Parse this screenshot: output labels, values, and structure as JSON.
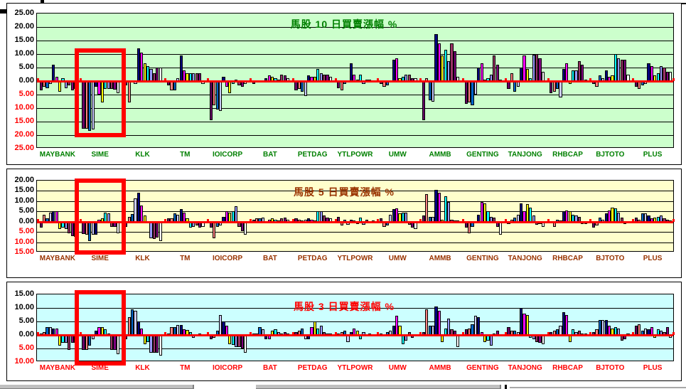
{
  "page": {
    "background": "#FFFFFF"
  },
  "chart_data": [
    {
      "id": "ten_day",
      "type": "bar",
      "title": "馬股 10 日買賣漲幅 %",
      "title_color": "#008000",
      "plot_bg": "#CCFFCC",
      "category_label_color": "#008000",
      "ylim": [
        -25,
        25
      ],
      "y_tick_step": 5,
      "y_ticks": [
        25,
        20,
        15,
        10,
        5,
        0,
        -5,
        -10,
        -15,
        -20,
        -25
      ],
      "y_tick_pos_color": "#000000",
      "y_tick_neg_color": "#FF0000",
      "zero_line_color": "#FF0000",
      "gridline_color": "#000000",
      "legend": "none",
      "bars_per_group": 12,
      "series_colors": [
        "#660066",
        "#FF8080",
        "#0066CC",
        "#CCCCFF",
        "#000080",
        "#FF00FF",
        "#FFFF00",
        "#00FFFF",
        "#9999FF",
        "#993366",
        "#800080",
        "#FFFFFF"
      ],
      "categories": [
        "MAYBANK",
        "SIME",
        "KLK",
        "TM",
        "IOICORP",
        "BAT",
        "PETDAG",
        "YTLPOWR",
        "UMW",
        "AMMB",
        "GENTING",
        "TANJONG",
        "RHBCAP",
        "BJTOTO",
        "PLUS"
      ],
      "groups": [
        [
          -3.5,
          -2,
          -2.5,
          -1,
          6,
          1.5,
          -4,
          1,
          -2.5,
          -1.5,
          -3.5,
          -3
        ],
        [
          -17.5,
          -17.5,
          -18.5,
          -18,
          -2,
          -5,
          -7.8,
          -3,
          -3,
          -3,
          -3.2,
          -4.5
        ],
        [
          -1.5,
          -8,
          -0.5,
          -1,
          12,
          10.5,
          6.5,
          5.5,
          4.5,
          3,
          5,
          5
        ],
        [
          -1.5,
          -3.5,
          -3.5,
          1,
          9.5,
          4,
          3,
          3,
          3,
          3,
          3,
          -1
        ],
        [
          -14.5,
          -9,
          -10.5,
          -11,
          1.5,
          -2,
          -4.5,
          -1,
          0.5,
          -1.5,
          -2,
          -1
        ],
        [
          -1,
          -0.5,
          -0.5,
          -0.5,
          1,
          2,
          1.5,
          1,
          0.5,
          2.5,
          2,
          1
        ],
        [
          -3.5,
          -3,
          -4,
          -5.5,
          2,
          1.5,
          1.5,
          4.5,
          3,
          2.5,
          2.5,
          1.5
        ],
        [
          -2.5,
          -3.5,
          -1,
          -0.5,
          6.5,
          2.5,
          0.5,
          2.5,
          -1,
          0.5,
          0.5,
          -0.5
        ],
        [
          -1,
          -2,
          -1.5,
          -0.5,
          8,
          8.5,
          1,
          1.5,
          2.5,
          2.5,
          1,
          1
        ],
        [
          -14.5,
          1,
          -7,
          -7.5,
          17.5,
          14,
          9.5,
          11.5,
          7.5,
          14,
          11,
          1.5
        ],
        [
          -8.5,
          -8,
          -9,
          -5,
          5,
          6.5,
          0.5,
          1,
          2.5,
          9.5,
          6,
          0.5
        ],
        [
          -3,
          3,
          -4,
          -2,
          5,
          9.5,
          4.5,
          1,
          9.8,
          10,
          8.5,
          3.5
        ],
        [
          -4.5,
          -4,
          -3,
          -6,
          4.5,
          6.5,
          -1,
          4,
          4,
          7.5,
          6,
          0.5
        ],
        [
          -1,
          -2,
          2,
          1,
          4,
          1.5,
          2,
          10,
          8.5,
          8,
          8,
          2.5
        ],
        [
          -2,
          -3,
          -1.5,
          -1,
          6.5,
          5.5,
          2,
          3,
          5.5,
          5,
          3.5,
          3.5
        ]
      ],
      "highlight": {
        "category": "SIME",
        "color": "#FF0000"
      }
    },
    {
      "id": "five_day",
      "type": "bar",
      "title": "馬股 5 日買賣漲幅 %",
      "title_color": "#993300",
      "plot_bg": "#FFFFCC",
      "category_label_color": "#993300",
      "ylim": [
        -15,
        20
      ],
      "y_tick_step": 5,
      "y_ticks": [
        20,
        15,
        10,
        5,
        0,
        -5,
        -10,
        -15
      ],
      "y_tick_pos_color": "#000000",
      "y_tick_neg_color": "#FF0000",
      "zero_line_color": "#FF0000",
      "gridline_color": "#000000",
      "legend": "none",
      "bars_per_group": 12,
      "series_colors": [
        "#660066",
        "#FF8080",
        "#0066CC",
        "#CCCCFF",
        "#000080",
        "#FF00FF",
        "#FFFF00",
        "#00FFFF",
        "#9999FF",
        "#993366",
        "#800080",
        "#FFFFFF"
      ],
      "categories": [
        "MAYBANK",
        "SIME",
        "KLK",
        "TM",
        "IOICORP",
        "BAT",
        "PETDAG",
        "YTLPOWR",
        "UMW",
        "AMMB",
        "GENTING",
        "TANJONG",
        "RHBCAP",
        "BJTOTO",
        "PLUS"
      ],
      "groups": [
        [
          -3,
          3.5,
          1.5,
          4.5,
          5,
          5,
          -3.5,
          -3,
          -3.5,
          -5.5,
          -7,
          -7.5
        ],
        [
          -6,
          -6.5,
          -9.5,
          -6.5,
          -6.5,
          1,
          1.5,
          4.5,
          4,
          -2.5,
          -2.5,
          -5.5
        ],
        [
          -2.5,
          2.5,
          3.8,
          11.5,
          14,
          7.8,
          3,
          -0.5,
          -8,
          -8.5,
          -7.8,
          -9.5
        ],
        [
          1.5,
          1.8,
          4,
          3.5,
          6,
          4.5,
          1.8,
          -3,
          -2.5,
          -2,
          -3,
          -2.5
        ],
        [
          -3,
          -8,
          -2.5,
          -2,
          2.5,
          5,
          4.5,
          5,
          7.5,
          -2.5,
          -4.5,
          -6.5
        ],
        [
          1,
          1.5,
          1.5,
          2,
          -0.5,
          1,
          1.5,
          1,
          0.5,
          1.5,
          2,
          1
        ],
        [
          1.5,
          1,
          0.5,
          1,
          1.5,
          1,
          0.5,
          5,
          5,
          3,
          2,
          1.5
        ],
        [
          2.5,
          -2,
          1,
          -1.5,
          1,
          0.5,
          -1,
          2,
          -1.5,
          1,
          -0.5,
          0.5
        ],
        [
          1.5,
          -2.5,
          -2,
          3.5,
          6,
          6.5,
          4,
          4.5,
          4.5,
          -1.5,
          -3,
          -3.5
        ],
        [
          3,
          13.5,
          2.5,
          2.5,
          15.5,
          14,
          1,
          12.5,
          9.5,
          1,
          0.5,
          0.5
        ],
        [
          -3,
          -5.5,
          -2.5,
          -0.5,
          3.5,
          9.5,
          9,
          5,
          2.5,
          2,
          -2.5,
          -6.5
        ],
        [
          -1,
          1,
          2,
          3.5,
          9,
          5,
          8.5,
          7,
          3,
          -1.5,
          -1,
          -2.5
        ],
        [
          -0.5,
          -2.5,
          1,
          0.5,
          5,
          5.5,
          5,
          3.5,
          3,
          2.5,
          -1,
          -1
        ],
        [
          -3,
          -2,
          2,
          1,
          4,
          5.5,
          7,
          6.5,
          4.5,
          2,
          -1,
          -0.5
        ],
        [
          2,
          1,
          4,
          4,
          3,
          1.5,
          2,
          2.5,
          3,
          1.5,
          1,
          0.5
        ]
      ],
      "highlight": {
        "category": "SIME",
        "color": "#FF0000"
      }
    },
    {
      "id": "three_day",
      "type": "bar",
      "title": "馬股 3 日買賣漲幅 %",
      "title_color": "#FF0000",
      "plot_bg": "#CCFFFF",
      "category_label_color": "#FF0000",
      "ylim": [
        -10,
        15
      ],
      "y_tick_step": 5,
      "y_ticks": [
        15,
        10,
        5,
        0,
        -5,
        -10
      ],
      "y_tick_pos_color": "#000000",
      "y_tick_neg_color": "#FF0000",
      "zero_line_color": "#FF0000",
      "gridline_color": "#000000",
      "legend": "none",
      "bars_per_group": 12,
      "series_colors": [
        "#660066",
        "#FF8080",
        "#0066CC",
        "#CCCCFF",
        "#000080",
        "#FF00FF",
        "#FFFF00",
        "#00FFFF",
        "#9999FF",
        "#993366",
        "#800080",
        "#FFFFFF"
      ],
      "categories": [
        "MAYBANK",
        "SIME",
        "KLK",
        "TM",
        "IOICORP",
        "BAT",
        "PETDAG",
        "YTLPOWR",
        "UMW",
        "AMMB",
        "GENTING",
        "TANJONG",
        "RHBCAP",
        "BJTOTO",
        "PLUS"
      ],
      "groups": [
        [
          0.5,
          1,
          2.8,
          2.8,
          2.5,
          2.3,
          -4,
          -3,
          -3,
          -5.5,
          -3,
          -3
        ],
        [
          -5.5,
          -5.5,
          -4,
          -1.5,
          1.5,
          2.8,
          2.8,
          2,
          0.5,
          -5.5,
          -5.5,
          -7
        ],
        [
          -1.5,
          6.5,
          9.5,
          9,
          5,
          2.3,
          -3.5,
          -2.5,
          -6.5,
          -6.5,
          -6.5,
          -7.5
        ],
        [
          0.5,
          2.8,
          3,
          3.8,
          3.8,
          2,
          1.8,
          1,
          -1,
          -0.5,
          0.5,
          -0.5
        ],
        [
          -1.5,
          -1,
          1.5,
          7.5,
          5,
          3.5,
          -3.5,
          -3.8,
          -4.5,
          -4.5,
          -5,
          -6.5
        ],
        [
          0.5,
          0.5,
          3,
          2,
          -1.5,
          -1.5,
          1.5,
          2,
          1,
          0.5,
          1,
          0.5
        ],
        [
          1,
          1.5,
          2.5,
          -1.5,
          -1.5,
          3,
          5,
          2.5,
          3.5,
          1,
          0.5,
          0.5
        ],
        [
          0.5,
          1,
          1.5,
          -2.5,
          1,
          2.5,
          1.5,
          -1.5,
          1,
          -0.5,
          0.5,
          -0.5
        ],
        [
          0.5,
          -0.5,
          1,
          1.5,
          3.5,
          7,
          3.5,
          -3.5,
          -2,
          1,
          -1,
          -0.5
        ],
        [
          1,
          9.5,
          3.3,
          3.3,
          10.5,
          9,
          -2.5,
          2.5,
          6,
          2,
          1.5,
          -4.5
        ],
        [
          2,
          2.5,
          4,
          7,
          6.5,
          1,
          -2.5,
          -2,
          -4,
          0.5,
          1.5,
          -0.5
        ],
        [
          3,
          1.5,
          1.5,
          1,
          10,
          8,
          7.5,
          -1,
          -1.5,
          -2.5,
          -3,
          -3.5
        ],
        [
          1,
          1.5,
          2,
          3.5,
          8.5,
          7.5,
          -2.5,
          2,
          1,
          1.5,
          0.5,
          0.5
        ],
        [
          1,
          2,
          5.5,
          5.5,
          5.5,
          3.5,
          2.5,
          3,
          2.5,
          -2,
          -1.5,
          0.5
        ],
        [
          3.5,
          4,
          1.5,
          2.5,
          2,
          3,
          -1,
          2,
          1.5,
          1,
          3,
          -1
        ]
      ],
      "highlight": {
        "category": "SIME",
        "color": "#FF0000"
      }
    }
  ]
}
